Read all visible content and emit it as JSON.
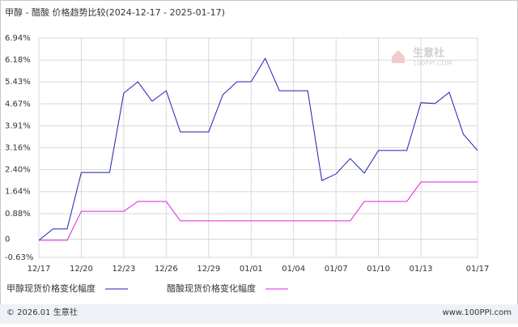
{
  "chart_data": {
    "type": "line",
    "title": "甲醇 - 醋酸 价格趋势比较(2024-12-17 - 2025-01-17)",
    "categories": [
      "12/17",
      null,
      null,
      "12/20",
      null,
      null,
      "12/23",
      null,
      null,
      "12/26",
      null,
      null,
      "12/29",
      null,
      null,
      "01/01",
      null,
      null,
      "01/04",
      null,
      null,
      "01/07",
      null,
      null,
      "01/10",
      null,
      null,
      "01/13",
      null,
      null,
      null,
      "01/17"
    ],
    "series": [
      {
        "name": "甲醇现货价格变化幅度",
        "color": "#1f1fb4",
        "values": [
          -0.04,
          0.35,
          0.35,
          2.3,
          2.3,
          2.3,
          5.04,
          5.43,
          4.76,
          5.12,
          3.7,
          3.7,
          3.7,
          4.98,
          5.43,
          5.43,
          6.24,
          5.12,
          5.12,
          5.12,
          2.02,
          2.25,
          2.78,
          2.28,
          3.06,
          3.06,
          3.06,
          4.71,
          4.68,
          5.07,
          3.62,
          3.06
        ]
      },
      {
        "name": "醋酸现货价格变化幅度",
        "color": "#e020e0",
        "values": [
          -0.04,
          -0.04,
          -0.04,
          0.96,
          0.96,
          0.96,
          0.96,
          1.3,
          1.3,
          1.3,
          0.63,
          0.63,
          0.63,
          0.63,
          0.63,
          0.63,
          0.63,
          0.63,
          0.63,
          0.63,
          0.63,
          0.63,
          0.63,
          1.3,
          1.3,
          1.3,
          1.3,
          1.97,
          1.97,
          1.97,
          1.97,
          1.97
        ]
      }
    ],
    "ylim": [
      -0.63,
      6.94
    ],
    "yticks": [
      {
        "value": 6.94,
        "label": "6.94%"
      },
      {
        "value": 6.18,
        "label": "6.18%"
      },
      {
        "value": 5.43,
        "label": "5.43%"
      },
      {
        "value": 4.67,
        "label": "4.67%"
      },
      {
        "value": 3.91,
        "label": "3.91%"
      },
      {
        "value": 3.16,
        "label": "3.16%"
      },
      {
        "value": 2.4,
        "label": "2.40%"
      },
      {
        "value": 1.64,
        "label": "1.64%"
      },
      {
        "value": 0.88,
        "label": "0.88%"
      },
      0,
      {
        "value": -0.63,
        "label": "-0.63%"
      }
    ],
    "grid": true,
    "watermark": {
      "name": "生意社",
      "site": "100PPI.COM"
    },
    "footer": {
      "copyright": "© 2026.01 生意社",
      "site": "www.100PPI.com"
    }
  }
}
